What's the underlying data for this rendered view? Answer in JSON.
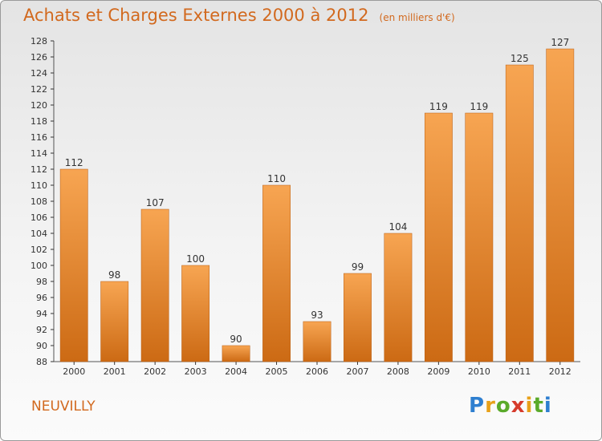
{
  "page": {
    "title": "Achats et Charges Externes 2000 à 2012",
    "unit_note": "(en milliers d'€)",
    "commune": "NEUVILLY",
    "logo_text": "Proxiti"
  },
  "colors": {
    "bar_top": "#f7a552",
    "bar_bottom": "#cc6a14",
    "text": "#d2691e",
    "axis": "#555555",
    "grid_tick": "#333333"
  },
  "chart_data": {
    "type": "bar",
    "categories": [
      "2000",
      "2001",
      "2002",
      "2003",
      "2004",
      "2005",
      "2006",
      "2007",
      "2008",
      "2009",
      "2010",
      "2011",
      "2012"
    ],
    "values": [
      112,
      98,
      107,
      100,
      90,
      110,
      93,
      99,
      104,
      119,
      119,
      125,
      127
    ],
    "ylim": [
      88,
      128
    ],
    "yticks": [
      88,
      90,
      92,
      94,
      96,
      98,
      100,
      102,
      104,
      106,
      108,
      110,
      112,
      114,
      116,
      118,
      120,
      122,
      124,
      126,
      128
    ],
    "title": "Achats et Charges Externes 2000 à 2012",
    "xlabel": "",
    "ylabel": "",
    "grid": false
  }
}
